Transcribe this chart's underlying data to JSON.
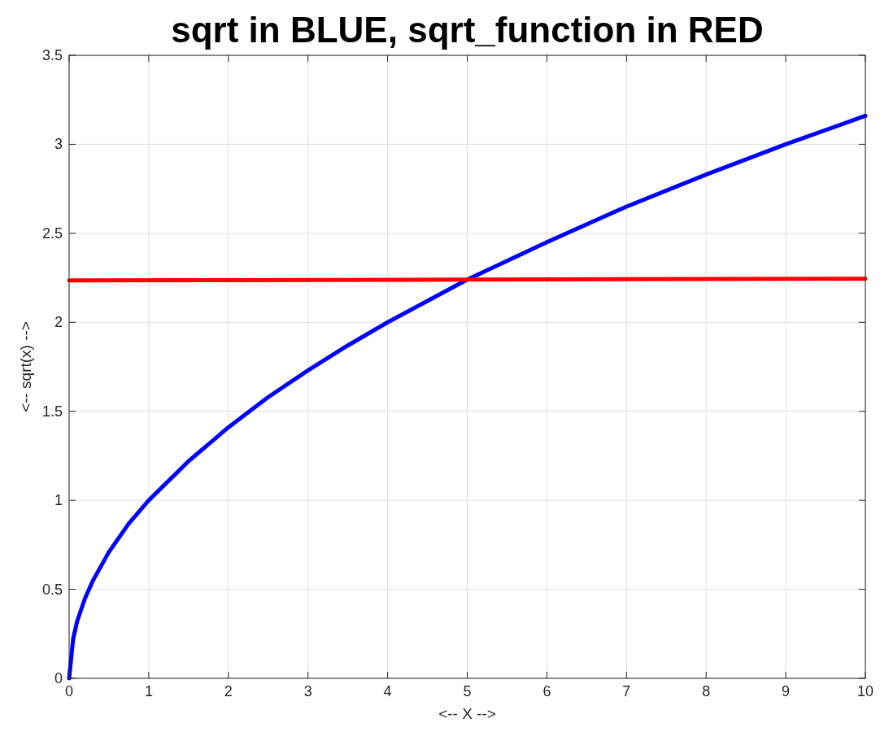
{
  "chart_data": {
    "type": "line",
    "title": "sqrt in BLUE, sqrt_function in RED",
    "xlabel": "<-- X -->",
    "ylabel": "<-- sqrt(x) -->",
    "xlim": [
      0,
      10
    ],
    "ylim": [
      0,
      3.5
    ],
    "xticks": [
      0,
      1,
      2,
      3,
      4,
      5,
      6,
      7,
      8,
      9,
      10
    ],
    "yticks": [
      0,
      0.5,
      1,
      1.5,
      2,
      2.5,
      3,
      3.5
    ],
    "grid": true,
    "line_style": "solid",
    "marker": "none",
    "series": [
      {
        "color": "#0000ff",
        "x": [
          0,
          0.05,
          0.1,
          0.2,
          0.3,
          0.5,
          0.75,
          1,
          1.5,
          2,
          2.5,
          3,
          3.5,
          4,
          4.5,
          5,
          6,
          7,
          8,
          9,
          10
        ],
        "values": [
          0,
          0.22,
          0.32,
          0.45,
          0.55,
          0.71,
          0.87,
          1,
          1.22,
          1.41,
          1.58,
          1.73,
          1.87,
          2,
          2.12,
          2.24,
          2.45,
          2.65,
          2.83,
          3,
          3.16
        ]
      },
      {
        "color": "#ff0000",
        "x": [
          0,
          5,
          10
        ],
        "values": [
          2.235,
          2.24,
          2.245
        ]
      }
    ]
  }
}
